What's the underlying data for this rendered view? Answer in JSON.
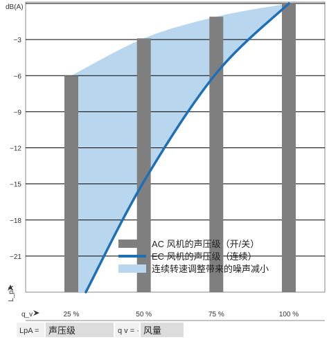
{
  "chart_data": {
    "type": "bar",
    "ylabel_unit": "dB(A)",
    "ylabel_axis": "L_pA",
    "xlabel_axis": "q_v",
    "yticks": [
      -3,
      -6,
      -9,
      -12,
      -15,
      -18,
      -21
    ],
    "ylim": [
      -24,
      0
    ],
    "categories": [
      "25 %",
      "50 %",
      "75 %",
      "100 %"
    ],
    "x_values": [
      25,
      50,
      75,
      100
    ],
    "series": [
      {
        "name": "AC 风机的声压级（开/关）",
        "kind": "bar",
        "color": "#7f7f7f",
        "values": [
          -6.0,
          -2.9,
          -1.1,
          0.0
        ]
      },
      {
        "name": "EC 风机的声压级（连续）",
        "kind": "line",
        "color": "#1f6fb5",
        "points": [
          [
            30,
            -24
          ],
          [
            50,
            -14.8
          ],
          [
            75,
            -5.8
          ],
          [
            100,
            0
          ]
        ]
      },
      {
        "name": "连续转速调整带来的噪声减小",
        "kind": "area",
        "color": "#b8d7ee"
      }
    ],
    "grid": true,
    "legend_position": "bottom-right"
  },
  "footer": {
    "lpa_symbol": "LpA =",
    "lpa_text": "声压级",
    "qv_symbol": "q v = ·",
    "qv_text": "风量"
  }
}
